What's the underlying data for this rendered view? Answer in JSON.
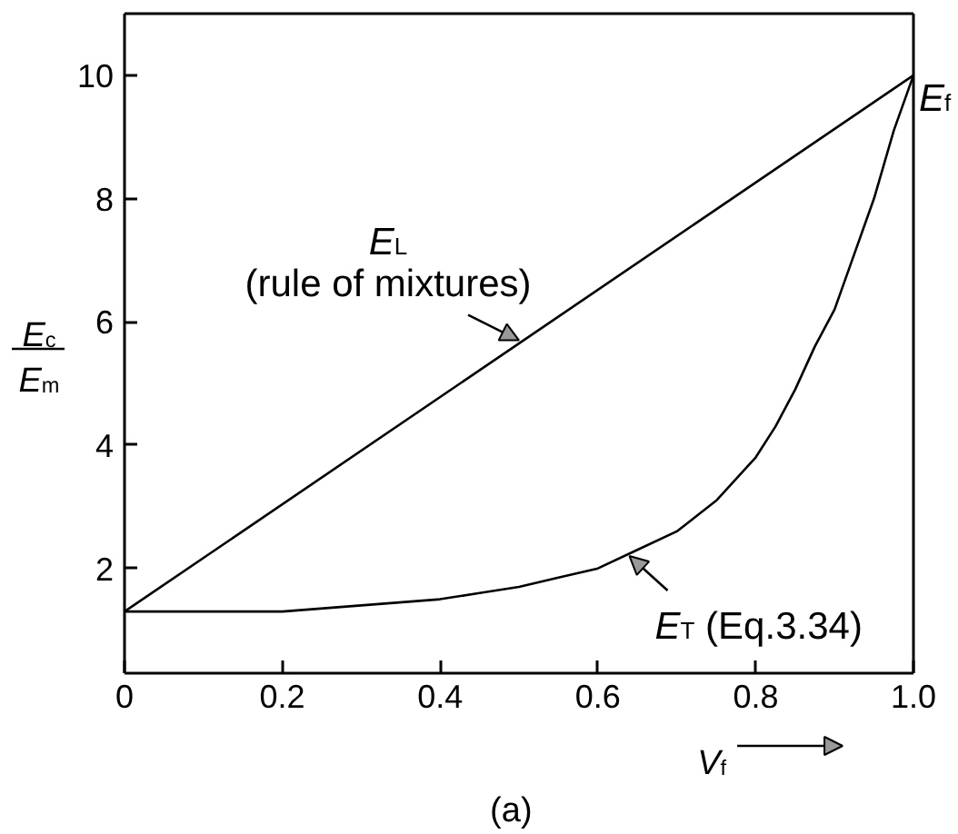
{
  "chart_data": {
    "type": "line",
    "xlabel": "V$_{f}$",
    "ylabel": "E$_{c}$\nE$_{m}$",
    "xlim": [
      0,
      1.0
    ],
    "ylim": [
      0.3,
      11
    ],
    "xticks": [
      0,
      0.2,
      0.4,
      0.6,
      0.8,
      {
        "value": 1.0,
        "label": "1.0"
      }
    ],
    "yticks": [
      2,
      4,
      6,
      8,
      10
    ],
    "line_style": "solid",
    "series": [
      {
        "color": "#000000",
        "x": [
          0,
          1.0
        ],
        "values": [
          1.3,
          10
        ]
      },
      {
        "color": "#000000",
        "x": [
          0,
          0.1,
          0.2,
          0.3,
          0.4,
          0.45,
          0.5,
          0.55,
          0.6,
          0.65,
          0.7,
          0.75,
          0.8,
          0.825,
          0.85,
          0.875,
          0.9,
          0.925,
          0.95,
          0.975,
          1.0
        ],
        "values": [
          1.3,
          1.3,
          1.3,
          1.4,
          1.5,
          1.6,
          1.7,
          1.85,
          2.0,
          2.3,
          2.6,
          3.1,
          3.8,
          4.3,
          4.9,
          5.6,
          6.2,
          7.1,
          8.0,
          9.1,
          10
        ]
      }
    ],
    "annotations": [
      {
        "text": "E$_{L}$\n(rule of mixtures)",
        "x": 0.5,
        "y": 5.7
      },
      {
        "text": "E$_{T}$ (Eq.3.34)",
        "x": 0.64,
        "y": 2.2
      },
      {
        "text": "E$_{f}$",
        "x": 1.0,
        "y": 10
      },
      "(a)"
    ]
  }
}
